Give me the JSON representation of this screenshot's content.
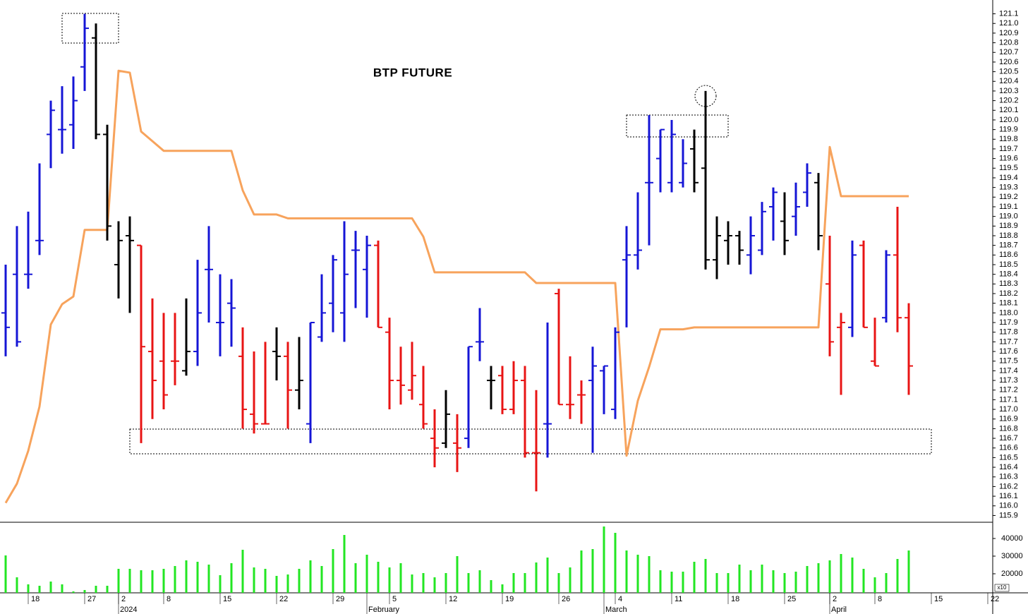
{
  "chart_data": {
    "type": "ohlc",
    "title": "BTP FUTURE",
    "categories": [
      null,
      null,
      "18",
      null,
      null,
      null,
      null,
      "27",
      null,
      null,
      "2",
      null,
      null,
      null,
      "8",
      null,
      null,
      null,
      null,
      "15",
      null,
      null,
      null,
      null,
      "22",
      null,
      null,
      null,
      null,
      "29",
      null,
      null,
      null,
      null,
      "5",
      null,
      null,
      null,
      null,
      "12",
      null,
      null,
      null,
      null,
      "19",
      null,
      null,
      null,
      null,
      "26",
      null,
      null,
      null,
      null,
      "4",
      null,
      null,
      null,
      null,
      "11",
      null,
      null,
      null,
      null,
      "18",
      null,
      null,
      null,
      null,
      "25",
      null,
      null,
      null,
      "2",
      null,
      null,
      null,
      "8",
      null,
      null,
      null,
      null,
      "15",
      null,
      null,
      null,
      null,
      "22"
    ],
    "period_labels": [
      null,
      null,
      null,
      null,
      null,
      null,
      null,
      null,
      null,
      null,
      "2024",
      null,
      null,
      null,
      null,
      null,
      null,
      null,
      null,
      null,
      null,
      null,
      null,
      null,
      null,
      null,
      null,
      null,
      null,
      null,
      null,
      null,
      "February",
      null,
      null,
      null,
      null,
      null,
      null,
      null,
      null,
      null,
      null,
      null,
      null,
      null,
      null,
      null,
      null,
      null,
      null,
      null,
      null,
      "March",
      null,
      null,
      null,
      null,
      null,
      null,
      null,
      null,
      null,
      null,
      null,
      null,
      null,
      null,
      null,
      null,
      null,
      null,
      null,
      "April",
      null,
      null,
      null,
      null,
      null,
      null,
      null,
      null,
      null,
      null,
      null,
      null,
      null,
      null
    ],
    "open": [
      118.0,
      118.4,
      118.4,
      118.75,
      119.85,
      119.9,
      119.95,
      120.55,
      120.85,
      119.85,
      118.5,
      118.8,
      118.7,
      117.6,
      117.5,
      117.5,
      117.4,
      117.6,
      118.45,
      117.9,
      118.1,
      117.55,
      116.95,
      116.85,
      117.6,
      117.55,
      117.2,
      116.85,
      117.75,
      118.1,
      118.0,
      118.65,
      118.45,
      118.7,
      117.8,
      117.3,
      117.2,
      117.05,
      116.7,
      116.65,
      116.65,
      116.7,
      117.7,
      117.3,
      117.35,
      117.0,
      117.3,
      116.55,
      116.85,
      118.2,
      117.05,
      117.15,
      117.3,
      117.4,
      117.0,
      118.55,
      118.6,
      119.35,
      119.6,
      119.35,
      119.35,
      119.7,
      119.5,
      118.55,
      118.75,
      118.8,
      118.6,
      118.65,
      119.1,
      118.95,
      119.0,
      119.25,
      119.35,
      118.3,
      117.85,
      117.85,
      118.7,
      117.5,
      117.95,
      118.6,
      117.95,
      null,
      null,
      null,
      null,
      null,
      null,
      null
    ],
    "high": [
      118.5,
      118.9,
      119.05,
      119.55,
      120.2,
      120.35,
      120.45,
      121.1,
      121.0,
      119.95,
      118.95,
      119.0,
      118.7,
      118.15,
      118.0,
      118.0,
      118.15,
      118.55,
      118.9,
      118.4,
      118.35,
      117.85,
      117.6,
      117.7,
      117.85,
      117.7,
      117.75,
      117.9,
      118.4,
      118.6,
      118.95,
      118.85,
      118.8,
      118.75,
      117.95,
      117.65,
      117.7,
      117.45,
      117.0,
      117.2,
      116.95,
      117.65,
      118.05,
      117.45,
      117.45,
      117.5,
      117.45,
      117.2,
      117.9,
      118.25,
      117.55,
      117.3,
      117.65,
      117.45,
      117.85,
      118.9,
      119.25,
      120.05,
      119.9,
      120.0,
      119.8,
      119.9,
      120.3,
      119.0,
      118.95,
      118.85,
      119.0,
      119.15,
      119.3,
      119.25,
      119.35,
      119.55,
      119.45,
      118.8,
      118.0,
      118.75,
      118.75,
      117.95,
      118.65,
      119.1,
      118.1,
      null,
      null,
      null,
      null,
      null,
      null,
      null
    ],
    "low": [
      117.55,
      117.65,
      118.25,
      118.6,
      119.5,
      119.65,
      119.7,
      120.3,
      119.8,
      118.75,
      118.15,
      118.0,
      116.65,
      116.9,
      117.0,
      117.25,
      117.35,
      117.45,
      117.9,
      117.55,
      117.65,
      116.8,
      116.75,
      116.85,
      117.3,
      116.8,
      117.0,
      116.65,
      117.7,
      117.8,
      117.7,
      118.05,
      117.95,
      117.85,
      117.0,
      117.05,
      117.1,
      116.8,
      116.4,
      116.6,
      116.35,
      116.6,
      117.5,
      117.0,
      116.95,
      116.95,
      116.5,
      116.15,
      116.5,
      117.05,
      116.9,
      116.85,
      116.55,
      116.95,
      116.9,
      117.85,
      118.45,
      118.7,
      119.25,
      119.25,
      119.3,
      119.25,
      118.45,
      118.35,
      118.5,
      118.5,
      118.4,
      118.6,
      118.75,
      118.6,
      118.8,
      119.1,
      118.65,
      117.55,
      117.15,
      117.75,
      117.85,
      117.45,
      117.9,
      117.8,
      117.15,
      null,
      null,
      null,
      null,
      null,
      null,
      null
    ],
    "close": [
      117.85,
      117.7,
      118.4,
      118.75,
      120.1,
      119.9,
      120.2,
      120.95,
      119.85,
      118.9,
      118.75,
      118.75,
      117.65,
      117.3,
      117.15,
      117.5,
      117.6,
      118.0,
      118.45,
      117.9,
      118.05,
      117.0,
      116.85,
      116.85,
      117.55,
      117.2,
      117.3,
      117.9,
      118.0,
      118.55,
      118.4,
      118.65,
      118.7,
      117.85,
      117.3,
      117.25,
      117.35,
      116.85,
      116.6,
      116.95,
      116.6,
      117.65,
      117.7,
      117.3,
      117.0,
      117.3,
      116.55,
      116.55,
      116.85,
      117.05,
      117.05,
      117.15,
      117.45,
      117.45,
      117.8,
      118.6,
      118.65,
      119.35,
      119.9,
      119.85,
      119.55,
      119.35,
      118.55,
      118.8,
      118.8,
      118.65,
      118.8,
      119.05,
      119.25,
      118.75,
      119.1,
      119.45,
      118.8,
      117.7,
      117.9,
      118.6,
      117.85,
      117.45,
      118.6,
      117.95,
      117.45,
      null,
      null,
      null,
      null,
      null,
      null,
      null
    ],
    "bar_colors": [
      "#1515d6",
      "#1515d6",
      "#1515d6",
      "#1515d6",
      "#1515d6",
      "#1515d6",
      "#1515d6",
      "#1515d6",
      "#000000",
      "#000000",
      "#000000",
      "#000000",
      "#e81414",
      "#e81414",
      "#e81414",
      "#e81414",
      "#000000",
      "#1515d6",
      "#1515d6",
      "#1515d6",
      "#1515d6",
      "#e81414",
      "#e81414",
      "#e81414",
      "#000000",
      "#e81414",
      "#000000",
      "#1515d6",
      "#1515d6",
      "#1515d6",
      "#1515d6",
      "#1515d6",
      "#1515d6",
      "#e81414",
      "#e81414",
      "#e81414",
      "#e81414",
      "#e81414",
      "#e81414",
      "#000000",
      "#e81414",
      "#1515d6",
      "#1515d6",
      "#000000",
      "#e81414",
      "#e81414",
      "#e81414",
      "#e81414",
      "#1515d6",
      "#e81414",
      "#e81414",
      "#e81414",
      "#1515d6",
      "#1515d6",
      "#1515d6",
      "#1515d6",
      "#1515d6",
      "#1515d6",
      "#1515d6",
      "#1515d6",
      "#1515d6",
      "#000000",
      "#000000",
      "#000000",
      "#000000",
      "#000000",
      "#1515d6",
      "#1515d6",
      "#1515d6",
      "#000000",
      "#1515d6",
      "#1515d6",
      "#000000",
      "#e81414",
      "#e81414",
      "#1515d6",
      "#e81414",
      "#e81414",
      "#1515d6",
      "#e81414",
      "#e81414",
      null,
      null,
      null,
      null,
      null,
      null,
      null
    ],
    "ylim": [
      115.83,
      121.17
    ],
    "yticks": [
      115.9,
      {
        "value": 116,
        "label": "116.0"
      },
      116.1,
      116.2,
      116.3,
      116.4,
      116.5,
      116.6,
      116.7,
      116.8,
      116.9,
      {
        "value": 117,
        "label": "117.0"
      },
      117.1,
      117.2,
      117.3,
      117.4,
      117.5,
      117.6,
      117.7,
      117.8,
      117.9,
      {
        "value": 118,
        "label": "118.0"
      },
      118.1,
      118.2,
      118.3,
      118.4,
      118.5,
      118.6,
      118.7,
      118.8,
      118.9,
      {
        "value": 119,
        "label": "119.0"
      },
      119.1,
      119.2,
      119.3,
      119.4,
      119.5,
      119.6,
      119.7,
      119.8,
      119.9,
      {
        "value": 120,
        "label": "120.0"
      },
      120.1,
      120.2,
      120.3,
      120.4,
      120.5,
      120.6,
      120.7,
      120.8,
      120.9,
      {
        "value": 121,
        "label": "121.0"
      },
      121.1
    ],
    "overlay": {
      "color": "#f7a35c",
      "values": [
        116.03,
        116.23,
        116.57,
        117.03,
        117.88,
        118.09,
        118.17,
        118.86,
        118.86,
        118.86,
        120.51,
        120.49,
        119.88,
        119.78,
        119.68,
        119.68,
        119.68,
        119.68,
        119.68,
        119.68,
        119.68,
        119.27,
        119.02,
        119.02,
        119.02,
        118.98,
        118.98,
        118.98,
        118.98,
        118.98,
        118.98,
        118.98,
        118.98,
        118.98,
        118.98,
        118.98,
        118.98,
        118.79,
        118.42,
        118.42,
        118.42,
        118.42,
        118.42,
        118.42,
        118.42,
        118.42,
        118.42,
        118.31,
        118.31,
        118.31,
        118.31,
        118.31,
        118.31,
        118.31,
        118.31,
        116.52,
        117.09,
        117.44,
        117.83,
        117.83,
        117.83,
        117.85,
        117.85,
        117.85,
        117.85,
        117.85,
        117.85,
        117.85,
        117.85,
        117.85,
        117.85,
        117.85,
        117.85,
        119.72,
        119.21,
        119.21,
        119.21,
        119.21,
        119.21,
        119.21,
        119.21,
        null,
        null,
        null,
        null,
        null,
        null,
        null
      ]
    },
    "volume": {
      "color": "#22e622",
      "unit_label": "x10",
      "ylim": [
        9200,
        48400
      ],
      "yticks": [
        20000,
        30000,
        40000
      ],
      "values": [
        30400,
        18000,
        14000,
        13200,
        15600,
        14000,
        10000,
        10800,
        13200,
        13200,
        22800,
        22800,
        22000,
        22000,
        22800,
        24400,
        27600,
        26800,
        25200,
        19200,
        26000,
        33600,
        23600,
        22800,
        18800,
        19600,
        22800,
        27600,
        24400,
        34000,
        42000,
        26000,
        30800,
        26800,
        23600,
        26000,
        19600,
        20400,
        18000,
        20400,
        30000,
        20400,
        22000,
        16400,
        14000,
        20400,
        20400,
        26400,
        29200,
        20400,
        23600,
        33200,
        34000,
        46800,
        43200,
        33200,
        30800,
        30000,
        22000,
        21200,
        21200,
        26800,
        28400,
        20400,
        20400,
        25200,
        22000,
        25200,
        22000,
        20400,
        21200,
        24400,
        26000,
        27600,
        31200,
        29200,
        22800,
        18000,
        20400,
        28400,
        33200,
        null,
        null,
        null,
        null,
        null,
        null,
        null
      ]
    }
  }
}
